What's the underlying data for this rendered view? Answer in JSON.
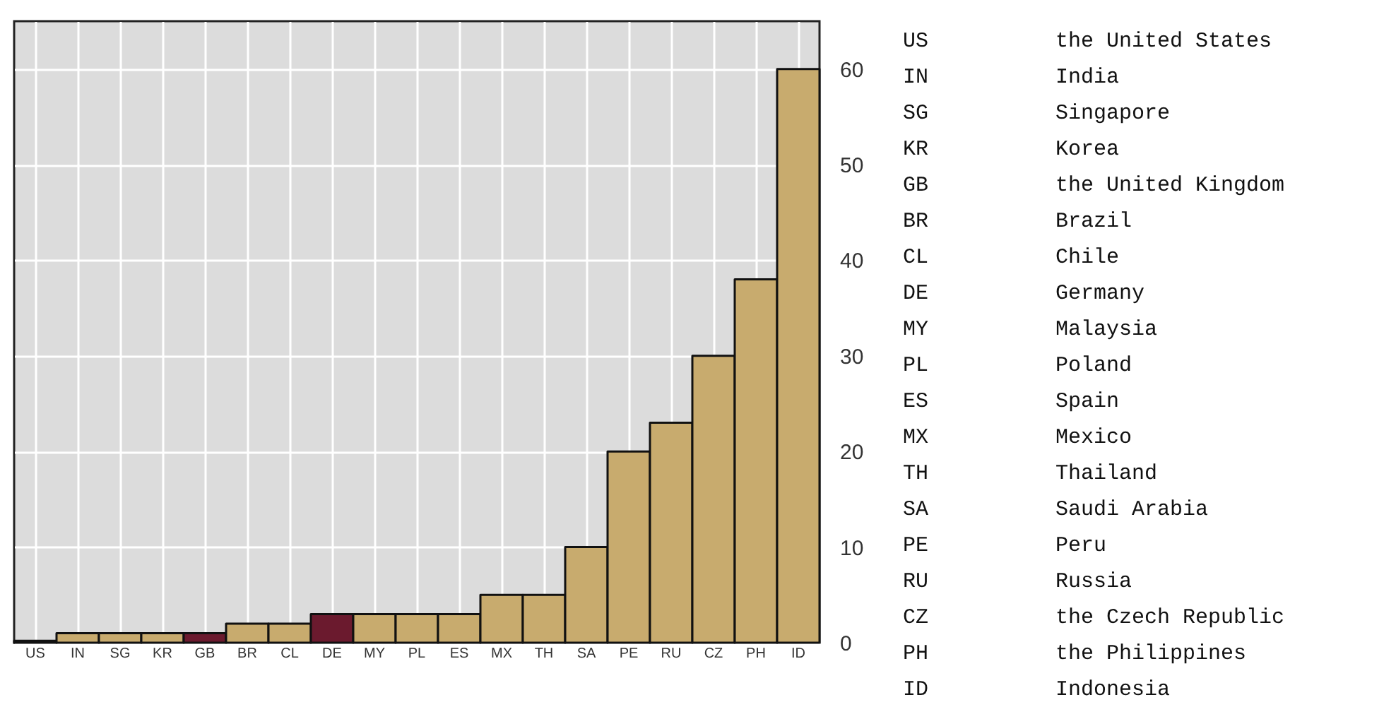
{
  "chart_data": [
    {
      "type": "bar",
      "categories": [
        "US",
        "IN",
        "SG",
        "KR",
        "GB",
        "BR",
        "CL",
        "DE",
        "MY",
        "PL",
        "ES",
        "MX",
        "TH",
        "SA",
        "PE",
        "RU",
        "CZ",
        "PH",
        "ID"
      ],
      "values": [
        0.2,
        1,
        1,
        1,
        1,
        2,
        2,
        3,
        3,
        3,
        3,
        5,
        5,
        10,
        20,
        23,
        30,
        38,
        60
      ],
      "colors": [
        "#c8ab6e",
        "#c8ab6e",
        "#c8ab6e",
        "#c8ab6e",
        "#6b1a2e",
        "#c8ab6e",
        "#c8ab6e",
        "#6b1a2e",
        "#c8ab6e",
        "#c8ab6e",
        "#c8ab6e",
        "#c8ab6e",
        "#c8ab6e",
        "#c8ab6e",
        "#c8ab6e",
        "#c8ab6e",
        "#c8ab6e",
        "#c8ab6e",
        "#c8ab6e"
      ],
      "ylim": [
        0,
        65
      ],
      "yticks": [
        0,
        10,
        20,
        30,
        40,
        50,
        60
      ],
      "grid": true
    },
    {
      "type": "other",
      "annotations": [
        "US",
        "the United States",
        "IN",
        "India",
        "SG",
        "Singapore",
        "KR",
        "Korea",
        "GB",
        "the United Kingdom",
        "BR",
        "Brazil",
        "CL",
        "Chile",
        "DE",
        "Germany",
        "MY",
        "Malaysia",
        "PL",
        "Poland",
        "ES",
        "Spain",
        "MX",
        "Mexico",
        "TH",
        "Thailand",
        "SA",
        "Saudi Arabia",
        "PE",
        "Peru",
        "RU",
        "Russia",
        "CZ",
        "the Czech Republic",
        "PH",
        "the Philippines",
        "ID",
        "Indonesia"
      ]
    }
  ]
}
